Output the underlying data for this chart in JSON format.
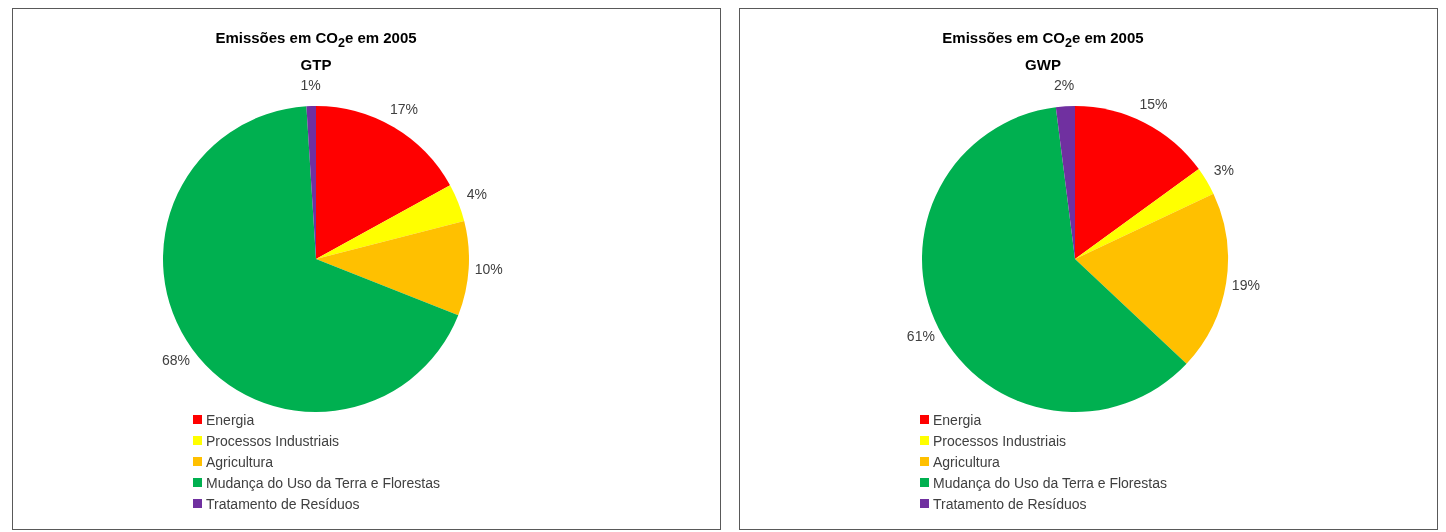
{
  "chart_data": [
    {
      "type": "pie",
      "title": "Emissões em CO$_{2}$e em 2005",
      "subtitle": "GTP",
      "categories": [
        "Energia",
        "Processos Industriais",
        "Agricultura",
        "Mudança do Uso da Terra e Florestas",
        "Tratamento de Resíduos"
      ],
      "values": [
        17,
        4,
        10,
        68,
        1
      ],
      "value_labels": [
        "17%",
        "4%",
        "10%",
        "68%",
        "1%"
      ],
      "colors": [
        "#ff0000",
        "#ffff00",
        "#ffc000",
        "#00b050",
        "#7030a0"
      ],
      "legend": "bottom"
    },
    {
      "type": "pie",
      "title": "Emissões em CO$_{2}$e  em 2005",
      "subtitle": "GWP",
      "categories": [
        "Energia",
        "Processos Industriais",
        "Agricultura",
        "Mudança do Uso da Terra e Florestas",
        "Tratamento de Resíduos"
      ],
      "values": [
        15,
        3,
        19,
        61,
        2
      ],
      "value_labels": [
        "15%",
        "3%",
        "19%",
        "61%",
        "2%"
      ],
      "colors": [
        "#ff0000",
        "#ffff00",
        "#ffc000",
        "#00b050",
        "#7030a0"
      ],
      "legend": "bottom"
    }
  ]
}
